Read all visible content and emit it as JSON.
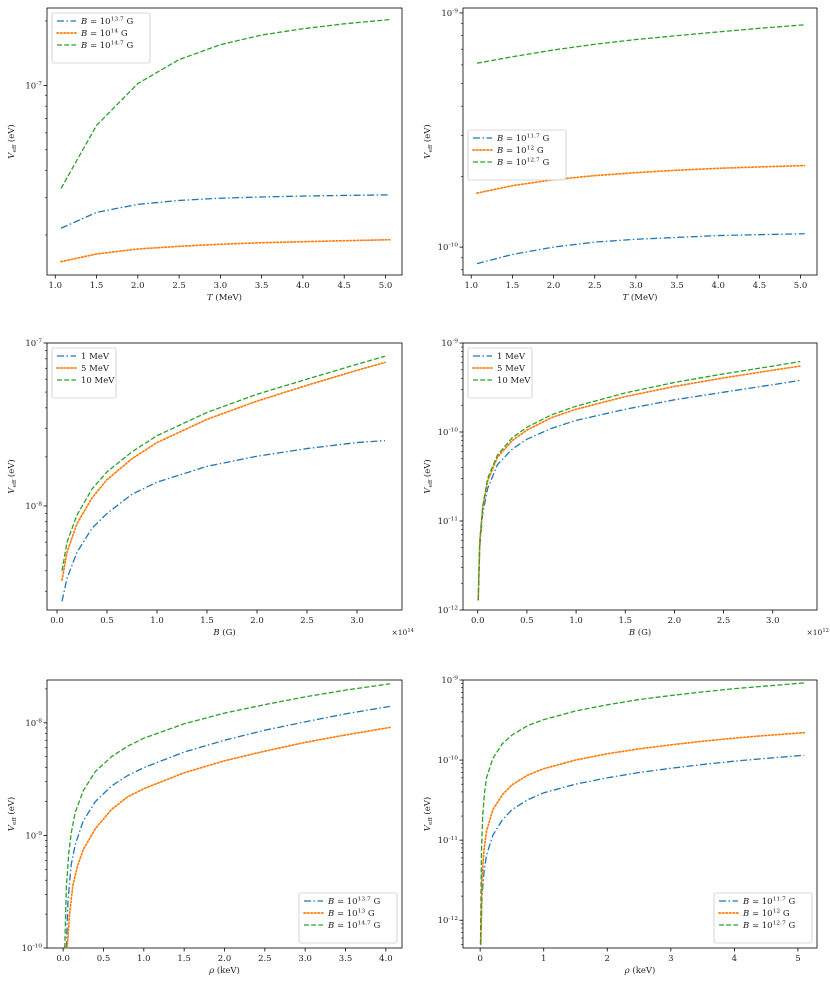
{
  "colors": {
    "blue": "#1f77b4",
    "orange": "#ff7f0e",
    "green": "#2ca02c"
  },
  "chart_data": [
    {
      "type": "line",
      "xlabel": "T (MeV)",
      "ylabel": "V_eff (eV)",
      "yscale": "log",
      "xlim": [
        0.9,
        5.2
      ],
      "ylim": [
        1.3e-08,
        2.3e-07
      ],
      "x_ticks": [
        "1.0",
        "1.5",
        "2.0",
        "2.5",
        "3.0",
        "3.5",
        "4.0",
        "4.5",
        "5.0"
      ],
      "y_tick_labels": [
        {
          "value": 1e-07,
          "label": "10^-7"
        }
      ],
      "legend": "upper-left",
      "series": [
        {
          "name": "B = 10^13.7 G",
          "style": "dashdot",
          "color": "#1f77b4",
          "x": [
            1.07,
            1.5,
            2.0,
            2.5,
            3.0,
            3.5,
            4.0,
            4.5,
            5.05
          ],
          "y": [
            2.15e-08,
            2.55e-08,
            2.78e-08,
            2.9e-08,
            2.97e-08,
            3.01e-08,
            3.04e-08,
            3.06e-08,
            3.08e-08
          ]
        },
        {
          "name": "B = 10^14 G",
          "style": "dotted",
          "color": "#ff7f0e",
          "x": [
            1.07,
            1.5,
            2.0,
            2.5,
            3.0,
            3.5,
            4.0,
            4.5,
            5.05
          ],
          "y": [
            1.5e-08,
            1.63e-08,
            1.72e-08,
            1.77e-08,
            1.81e-08,
            1.84e-08,
            1.86e-08,
            1.88e-08,
            1.9e-08
          ]
        },
        {
          "name": "B = 10^14.7 G",
          "style": "dashed",
          "color": "#2ca02c",
          "x": [
            1.07,
            1.5,
            2.0,
            2.5,
            3.0,
            3.5,
            4.0,
            4.5,
            5.05
          ],
          "y": [
            3.3e-08,
            6.5e-08,
            1.02e-07,
            1.32e-07,
            1.55e-07,
            1.72e-07,
            1.84e-07,
            1.94e-07,
            2.03e-07
          ]
        }
      ]
    },
    {
      "type": "line",
      "xlabel": "T (MeV)",
      "ylabel": "V_eff (eV)",
      "yscale": "log",
      "xlim": [
        0.9,
        5.2
      ],
      "ylim": [
        7.6e-11,
        1.05e-09
      ],
      "x_ticks": [
        "1.0",
        "1.5",
        "2.0",
        "2.5",
        "3.0",
        "3.5",
        "4.0",
        "4.5",
        "5.0"
      ],
      "y_tick_labels": [
        {
          "value": 1e-09,
          "label": "10^-9"
        },
        {
          "value": 1e-10,
          "label": "10^-10"
        }
      ],
      "legend": "center-left",
      "series": [
        {
          "name": "B = 10^11.7 G",
          "style": "dashdot",
          "color": "#1f77b4",
          "x": [
            1.07,
            1.5,
            2.0,
            2.5,
            3.0,
            3.5,
            4.0,
            4.5,
            5.05
          ],
          "y": [
            8.5e-11,
            9.3e-11,
            1e-10,
            1.05e-10,
            1.08e-10,
            1.1e-10,
            1.12e-10,
            1.13e-10,
            1.14e-10
          ]
        },
        {
          "name": "B = 10^12 G",
          "style": "dotted",
          "color": "#ff7f0e",
          "x": [
            1.07,
            1.5,
            2.0,
            2.5,
            3.0,
            3.5,
            4.0,
            4.5,
            5.05
          ],
          "y": [
            1.7e-10,
            1.83e-10,
            1.94e-10,
            2.02e-10,
            2.08e-10,
            2.13e-10,
            2.17e-10,
            2.2e-10,
            2.23e-10
          ]
        },
        {
          "name": "B = 10^12.7 G",
          "style": "dashed",
          "color": "#2ca02c",
          "x": [
            1.07,
            1.5,
            2.0,
            2.5,
            3.0,
            3.5,
            4.0,
            4.5,
            5.05
          ],
          "y": [
            6.1e-10,
            6.5e-10,
            6.95e-10,
            7.35e-10,
            7.7e-10,
            8e-10,
            8.3e-10,
            8.6e-10,
            8.9e-10
          ]
        }
      ]
    },
    {
      "type": "line",
      "xlabel": "B (G)",
      "ylabel": "V_eff (eV)",
      "yscale": "log",
      "xlim": [
        -0.1,
        3.45
      ],
      "ylim": [
        2.3e-09,
        1e-07
      ],
      "x_ticks": [
        "0.0",
        "0.5",
        "1.0",
        "1.5",
        "2.0",
        "2.5",
        "3.0"
      ],
      "x_multiplier": "×10^14",
      "y_tick_labels": [
        {
          "value": 1e-07,
          "label": "10^-7"
        },
        {
          "value": 1e-08,
          "label": "10^-8"
        }
      ],
      "legend": "upper-left",
      "series": [
        {
          "name": "1 MeV",
          "style": "dashdot",
          "color": "#1f77b4",
          "x": [
            0.05,
            0.1,
            0.2,
            0.35,
            0.5,
            0.75,
            1.0,
            1.5,
            2.0,
            2.5,
            3.0,
            3.28
          ],
          "y": [
            2.6e-09,
            3.6e-09,
            5.2e-09,
            7.3e-09,
            9e-09,
            1.18e-08,
            1.4e-08,
            1.75e-08,
            2.02e-08,
            2.25e-08,
            2.45e-08,
            2.52e-08
          ]
        },
        {
          "name": "5 MeV",
          "style": "dotted",
          "color": "#ff7f0e",
          "x": [
            0.05,
            0.1,
            0.2,
            0.35,
            0.5,
            0.75,
            1.0,
            1.5,
            2.0,
            2.5,
            3.0,
            3.28
          ],
          "y": [
            3.5e-09,
            5.2e-09,
            7.8e-09,
            1.12e-08,
            1.45e-08,
            1.95e-08,
            2.45e-08,
            3.4e-08,
            4.4e-08,
            5.5e-08,
            6.8e-08,
            7.6e-08
          ]
        },
        {
          "name": "10 MeV",
          "style": "dashed",
          "color": "#2ca02c",
          "x": [
            0.05,
            0.1,
            0.2,
            0.35,
            0.5,
            0.75,
            1.0,
            1.5,
            2.0,
            2.5,
            3.0,
            3.28
          ],
          "y": [
            4e-09,
            6e-09,
            8.8e-09,
            1.27e-08,
            1.62e-08,
            2.15e-08,
            2.7e-08,
            3.75e-08,
            4.85e-08,
            6e-08,
            7.4e-08,
            8.3e-08
          ]
        }
      ]
    },
    {
      "type": "line",
      "xlabel": "B (G)",
      "ylabel": "V_eff (eV)",
      "yscale": "log",
      "xlim": [
        -0.15,
        3.45
      ],
      "ylim": [
        1e-12,
        1e-09
      ],
      "x_ticks": [
        "0.0",
        "0.5",
        "1.0",
        "1.5",
        "2.0",
        "2.5",
        "3.0"
      ],
      "x_multiplier": "×10^12",
      "y_tick_labels": [
        {
          "value": 1e-09,
          "label": "10^-9"
        },
        {
          "value": 1e-10,
          "label": "10^-10"
        },
        {
          "value": 1e-11,
          "label": "10^-11"
        },
        {
          "value": 1e-12,
          "label": "10^-12"
        }
      ],
      "legend": "upper-left",
      "series": [
        {
          "name": "1 MeV",
          "style": "dashdot",
          "color": "#1f77b4",
          "x": [
            0.005,
            0.02,
            0.05,
            0.1,
            0.2,
            0.35,
            0.5,
            0.75,
            1.0,
            1.5,
            2.0,
            2.5,
            3.0,
            3.28
          ],
          "y": [
            1.3e-12,
            5e-12,
            1.2e-11,
            2.3e-11,
            4.3e-11,
            6.4e-11,
            8.3e-11,
            1.1e-10,
            1.35e-10,
            1.8e-10,
            2.3e-10,
            2.8e-10,
            3.4e-10,
            3.8e-10
          ]
        },
        {
          "name": "5 MeV",
          "style": "dotted",
          "color": "#ff7f0e",
          "x": [
            0.005,
            0.02,
            0.05,
            0.1,
            0.2,
            0.35,
            0.5,
            0.75,
            1.0,
            1.5,
            2.0,
            2.5,
            3.0,
            3.28
          ],
          "y": [
            1.3e-12,
            5.6e-12,
            1.4e-11,
            2.8e-11,
            5.2e-11,
            8e-11,
            1.05e-10,
            1.45e-10,
            1.8e-10,
            2.5e-10,
            3.25e-10,
            4.05e-10,
            4.95e-10,
            5.5e-10
          ]
        },
        {
          "name": "10 MeV",
          "style": "dashed",
          "color": "#2ca02c",
          "x": [
            0.005,
            0.02,
            0.05,
            0.1,
            0.2,
            0.35,
            0.5,
            0.75,
            1.0,
            1.5,
            2.0,
            2.5,
            3.0,
            3.28
          ],
          "y": [
            1.3e-12,
            5.8e-12,
            1.45e-11,
            3e-11,
            5.5e-11,
            8.6e-11,
            1.13e-10,
            1.56e-10,
            1.95e-10,
            2.75e-10,
            3.6e-10,
            4.5e-10,
            5.5e-10,
            6.2e-10
          ]
        }
      ]
    },
    {
      "type": "line",
      "xlabel": "ρ (keV)",
      "ylabel": "V_eff (eV)",
      "yscale": "log",
      "xlim": [
        -0.2,
        4.2
      ],
      "ylim": [
        1e-10,
        2.4e-08
      ],
      "x_ticks": [
        "0.0",
        "0.5",
        "1.0",
        "1.5",
        "2.0",
        "2.5",
        "3.0",
        "3.5",
        "4.0"
      ],
      "y_tick_labels": [
        {
          "value": 1e-08,
          "label": "10^-8"
        },
        {
          "value": 1e-09,
          "label": "10^-9"
        },
        {
          "value": 1e-10,
          "label": "10^-10"
        }
      ],
      "legend": "lower-right",
      "series": [
        {
          "name": "B = 10^13.7 G",
          "style": "dashdot",
          "color": "#1f77b4",
          "x": [
            0.04,
            0.06,
            0.1,
            0.15,
            0.25,
            0.4,
            0.6,
            0.8,
            1.0,
            1.5,
            2.0,
            2.5,
            3.0,
            3.5,
            4.05
          ],
          "y": [
            1e-10,
            2.6e-10,
            5.5e-10,
            8.3e-10,
            1.35e-09,
            2e-09,
            2.75e-09,
            3.4e-09,
            4e-09,
            5.5e-09,
            7e-09,
            8.6e-09,
            1.02e-08,
            1.2e-08,
            1.4e-08
          ]
        },
        {
          "name": "B = 10^13 G",
          "style": "dotted",
          "color": "#ff7f0e",
          "x": [
            0.05,
            0.08,
            0.12,
            0.18,
            0.25,
            0.4,
            0.6,
            0.8,
            1.0,
            1.5,
            2.0,
            2.5,
            3.0,
            3.5,
            4.05
          ],
          "y": [
            1e-10,
            2e-10,
            3.6e-10,
            5.4e-10,
            7.5e-10,
            1.15e-09,
            1.7e-09,
            2.2e-09,
            2.6e-09,
            3.6e-09,
            4.6e-09,
            5.6e-09,
            6.7e-09,
            7.8e-09,
            9.1e-09
          ]
        },
        {
          "name": "B = 10^14.7 G",
          "style": "dashed",
          "color": "#2ca02c",
          "x": [
            0.02,
            0.04,
            0.07,
            0.1,
            0.15,
            0.25,
            0.4,
            0.6,
            0.8,
            1.0,
            1.5,
            2.0,
            2.5,
            3.0,
            3.5,
            4.05
          ],
          "y": [
            1e-10,
            3.5e-10,
            7e-10,
            1.05e-09,
            1.6e-09,
            2.5e-09,
            3.7e-09,
            5e-09,
            6.2e-09,
            7.3e-09,
            9.8e-09,
            1.22e-08,
            1.45e-08,
            1.7e-08,
            1.95e-08,
            2.22e-08
          ]
        }
      ]
    },
    {
      "type": "line",
      "xlabel": "ρ (keV)",
      "ylabel": "V_eff (eV)",
      "yscale": "log",
      "xlim": [
        -0.27,
        5.3
      ],
      "ylim": [
        4.5e-13,
        1e-09
      ],
      "x_ticks": [
        "0",
        "1",
        "2",
        "3",
        "4",
        "5"
      ],
      "y_tick_labels": [
        {
          "value": 1e-09,
          "label": "10^-9"
        },
        {
          "value": 1e-10,
          "label": "10^-10"
        },
        {
          "value": 1e-11,
          "label": "10^-11"
        },
        {
          "value": 1e-12,
          "label": "10^-12"
        }
      ],
      "legend": "lower-right",
      "series": [
        {
          "name": "B = 10^11.7 G",
          "style": "dashdot",
          "color": "#1f77b4",
          "x": [
            0.01,
            0.03,
            0.06,
            0.1,
            0.2,
            0.35,
            0.5,
            0.75,
            1.0,
            1.5,
            2.0,
            2.5,
            3.0,
            3.5,
            4.0,
            4.5,
            5.1
          ],
          "y": [
            5e-13,
            2e-12,
            4e-12,
            6.5e-12,
            1.15e-11,
            1.8e-11,
            2.4e-11,
            3.2e-11,
            3.9e-11,
            5e-11,
            6e-11,
            7e-11,
            7.9e-11,
            8.8e-11,
            9.7e-11,
            1.05e-10,
            1.15e-10
          ]
        },
        {
          "name": "B = 10^12 G",
          "style": "dotted",
          "color": "#ff7f0e",
          "x": [
            0.01,
            0.03,
            0.06,
            0.1,
            0.2,
            0.35,
            0.5,
            0.75,
            1.0,
            1.5,
            2.0,
            2.5,
            3.0,
            3.5,
            4.0,
            4.5,
            5.1
          ],
          "y": [
            5e-13,
            3.5e-12,
            7.5e-12,
            1.3e-11,
            2.4e-11,
            3.7e-11,
            4.9e-11,
            6.5e-11,
            7.8e-11,
            1e-10,
            1.2e-10,
            1.38e-10,
            1.55e-10,
            1.72e-10,
            1.88e-10,
            2.03e-10,
            2.2e-10
          ]
        },
        {
          "name": "B = 10^12.7 G",
          "style": "dashed",
          "color": "#2ca02c",
          "x": [
            0.005,
            0.02,
            0.04,
            0.07,
            0.1,
            0.2,
            0.35,
            0.5,
            0.75,
            1.0,
            1.5,
            2.0,
            2.5,
            3.0,
            3.5,
            4.0,
            4.5,
            5.1
          ],
          "y": [
            5e-13,
            7e-12,
            2e-11,
            4e-11,
            6e-11,
            1.05e-10,
            1.6e-10,
            2.05e-10,
            2.7e-10,
            3.2e-10,
            4.1e-10,
            4.9e-10,
            5.7e-10,
            6.4e-10,
            7.1e-10,
            7.8e-10,
            8.4e-10,
            9.2e-10
          ]
        }
      ]
    }
  ]
}
